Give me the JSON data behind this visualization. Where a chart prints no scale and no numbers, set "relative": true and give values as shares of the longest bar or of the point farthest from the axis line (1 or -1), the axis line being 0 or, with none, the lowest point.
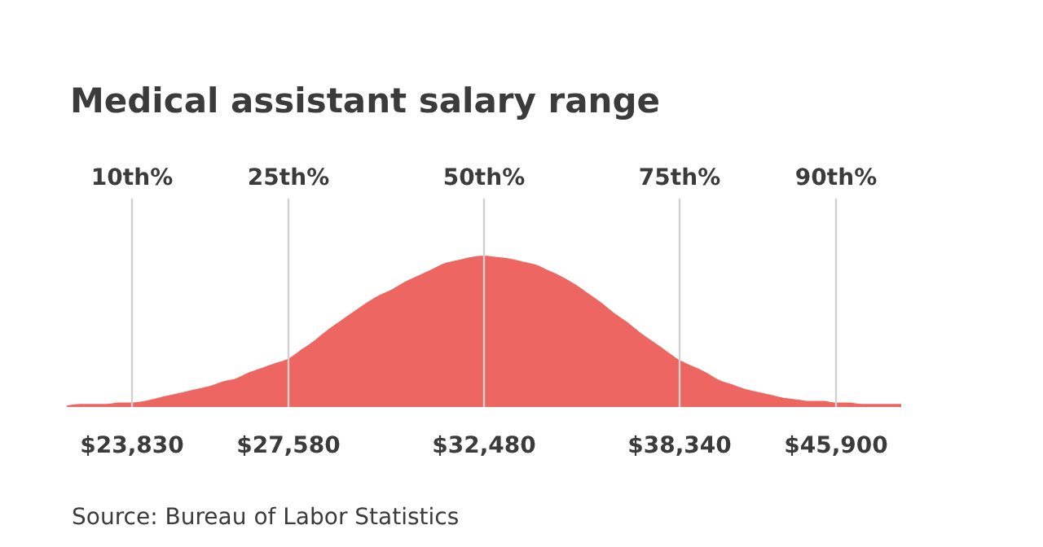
{
  "chart_data": {
    "type": "area",
    "title": "Medical assistant salary range",
    "relative": true,
    "color": "#ee6661",
    "categories": [
      null,
      null,
      null,
      null,
      null,
      "$23,830",
      null,
      null,
      null,
      null,
      null,
      null,
      null,
      null,
      null,
      null,
      null,
      "$27,580",
      null,
      null,
      null,
      null,
      null,
      null,
      null,
      null,
      null,
      null,
      null,
      null,
      null,
      null,
      "$32,480",
      null,
      null,
      null,
      null,
      null,
      null,
      null,
      null,
      null,
      null,
      null,
      null,
      null,
      null,
      "$38,340",
      null,
      null,
      null,
      null,
      null,
      null,
      null,
      null,
      null,
      null,
      null,
      "$45,900",
      null,
      null,
      null,
      null,
      null
    ],
    "values": [
      0.01,
      0.02,
      0.02,
      0.02,
      0.03,
      0.03,
      0.04,
      0.06,
      0.08,
      0.1,
      0.12,
      0.14,
      0.17,
      0.19,
      0.23,
      0.26,
      0.29,
      0.32,
      0.38,
      0.44,
      0.51,
      0.57,
      0.63,
      0.69,
      0.74,
      0.78,
      0.83,
      0.87,
      0.91,
      0.95,
      0.97,
      0.99,
      1,
      0.99,
      0.98,
      0.96,
      0.94,
      0.9,
      0.86,
      0.81,
      0.75,
      0.69,
      0.62,
      0.56,
      0.49,
      0.43,
      0.37,
      0.31,
      0.27,
      0.23,
      0.18,
      0.15,
      0.12,
      0.1,
      0.08,
      0.06,
      0.05,
      0.04,
      0.04,
      0.03,
      0.03,
      0.02,
      0.02,
      0.02,
      0.02
    ],
    "ref_lines": [
      {
        "axis": "x",
        "value": "$23,830",
        "label": "10th%",
        "color": "#d0d0d0"
      },
      {
        "axis": "x",
        "value": "$27,580",
        "label": "25th%",
        "color": "#d0d0d0"
      },
      {
        "axis": "x",
        "value": "$32,480",
        "label": "50th%",
        "color": "#d0d0d0"
      },
      {
        "axis": "x",
        "value": "$38,340",
        "label": "75th%",
        "color": "#d0d0d0"
      },
      {
        "axis": "x",
        "value": "$45,900",
        "label": "90th%",
        "color": "#d0d0d0"
      }
    ],
    "annotations": [
      "Source: Bureau of Labor Statistics"
    ],
    "grid": false,
    "legend": false
  }
}
